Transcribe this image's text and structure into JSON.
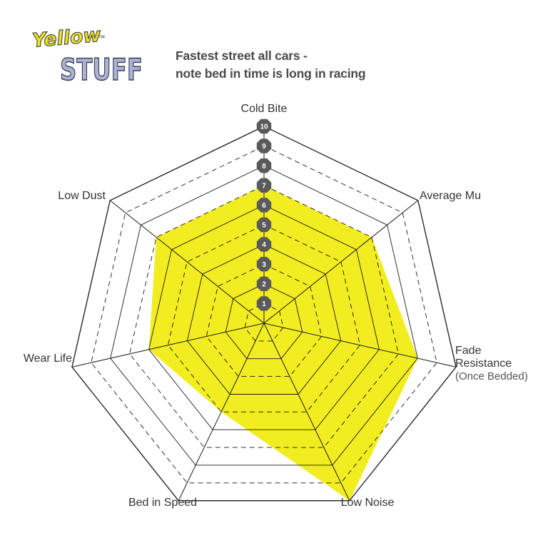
{
  "logo": {
    "line1": "Yellow",
    "line2": "STUFF",
    "mark": "TM"
  },
  "chart_data": {
    "type": "radar",
    "subtitle_lines": [
      "Fastest street all cars -",
      "note bed in time is long in racing"
    ],
    "axes": [
      {
        "label": [
          "Cold Bite"
        ]
      },
      {
        "label": [
          "Average Mu"
        ]
      },
      {
        "label": [
          "Fade",
          "Resistance"
        ],
        "sublabel": "(Once Bedded)"
      },
      {
        "label": [
          "Low Noise"
        ]
      },
      {
        "label": [
          "Bed in Speed"
        ]
      },
      {
        "label": [
          "Wear Life"
        ]
      },
      {
        "label": [
          "Low Dust"
        ]
      }
    ],
    "values": [
      7,
      7,
      8,
      10,
      5,
      6,
      7
    ],
    "range": [
      0,
      10
    ],
    "tick_labels": [
      "1",
      "2",
      "3",
      "4",
      "5",
      "6",
      "7",
      "8",
      "9",
      "10"
    ],
    "fill_color": "#f2ed20",
    "tick_badge_color": "#5a5a5a"
  }
}
